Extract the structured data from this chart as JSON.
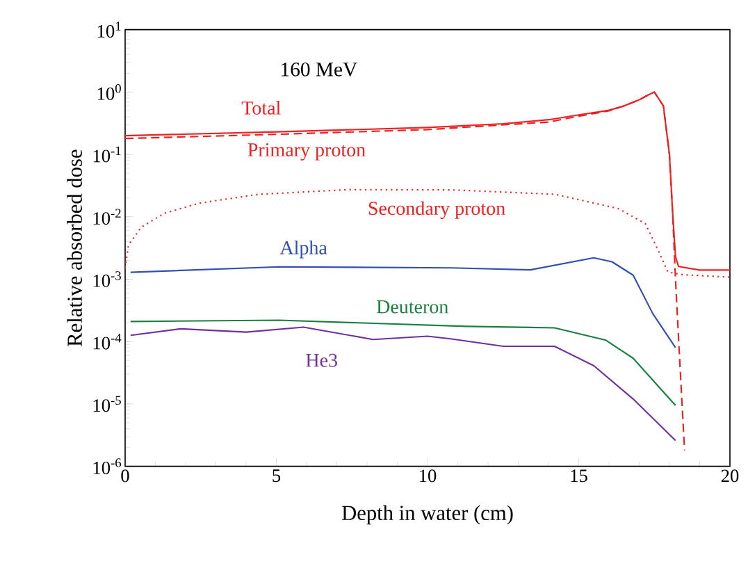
{
  "chart_data": {
    "type": "line",
    "title": "160 MeV",
    "xlabel": "Depth in water (cm)",
    "ylabel": "Relative absorbed dose",
    "log": "y",
    "xlim": [
      0,
      20
    ],
    "ylim": [
      1e-06,
      10
    ],
    "xticks": [
      0,
      5,
      10,
      15,
      20
    ],
    "yticks": [
      {
        "value": 1e-06,
        "label": "10$^{-6}$"
      },
      {
        "value": 1e-05,
        "label": "10$^{-5}$"
      },
      {
        "value": 0.0001,
        "label": "10$^{-4}$"
      },
      {
        "value": 0.001,
        "label": "10$^{-3}$"
      },
      {
        "value": 0.01,
        "label": "10$^{-2}$"
      },
      {
        "value": 0.1,
        "label": "10$^{-1}$"
      },
      {
        "value": 1,
        "label": "10$^{0}$"
      },
      {
        "value": 10,
        "label": "10$^{1}$"
      }
    ],
    "series": [
      {
        "name": "Total",
        "color": "#f02020",
        "line_style": "solid",
        "x": [
          0,
          5,
          10,
          12.5,
          14,
          15,
          16,
          16.5,
          17,
          17.3,
          17.5,
          17.8,
          18.0,
          18.1,
          18.2,
          18.3,
          19,
          20
        ],
        "values": [
          0.2,
          0.23,
          0.27,
          0.31,
          0.36,
          0.43,
          0.51,
          0.6,
          0.75,
          0.9,
          1.0,
          0.6,
          0.1,
          0.013,
          0.0023,
          0.0016,
          0.0014,
          0.0014
        ]
      },
      {
        "name": "Primary proton",
        "color": "#f02020",
        "line_style": "dashed",
        "x": [
          0,
          5,
          10,
          14,
          15,
          16,
          16.5,
          17,
          17.3,
          17.5,
          17.8,
          18.0,
          18.1,
          18.2,
          18.35,
          18.5
        ],
        "values": [
          0.18,
          0.21,
          0.25,
          0.33,
          0.41,
          0.5,
          0.6,
          0.75,
          0.9,
          1.0,
          0.6,
          0.1,
          0.013,
          0.001,
          4e-05,
          1.8e-06
        ]
      },
      {
        "name": "Secondary proton",
        "color": "#f02020",
        "line_style": "dotted",
        "x": [
          0,
          0.11,
          0.53,
          1.3,
          2.46,
          4.4,
          7.4,
          10.8,
          14.2,
          16.3,
          17.2,
          17.6,
          17.95,
          18.45,
          20
        ],
        "values": [
          0.0015,
          0.0035,
          0.0068,
          0.0114,
          0.0166,
          0.0229,
          0.0273,
          0.027,
          0.023,
          0.0136,
          0.0078,
          0.0031,
          0.0013,
          0.00118,
          0.00108
        ]
      },
      {
        "name": "Alpha",
        "color": "#3050b0",
        "line_style": "solid",
        "x": [
          0.18,
          5.1,
          10.8,
          13.4,
          15.5,
          16.1,
          16.8,
          17.45,
          18.2
        ],
        "values": [
          0.00129,
          0.00158,
          0.00152,
          0.00141,
          0.0022,
          0.0019,
          0.00116,
          0.00028,
          8e-05
        ]
      },
      {
        "name": "Deuteron",
        "color": "#1a8040",
        "line_style": "solid",
        "x": [
          0.18,
          5.1,
          11.3,
          14.2,
          15.9,
          16.8,
          18.2
        ],
        "values": [
          0.00021,
          0.00022,
          0.000175,
          0.000166,
          0.000105,
          5.4e-05,
          9.5e-06
        ]
      },
      {
        "name": "He3",
        "color": "#7030a0",
        "line_style": "solid",
        "x": [
          0.18,
          1.84,
          4.0,
          5.9,
          8.2,
          10.0,
          10.8,
          12.5,
          14.2,
          15.5,
          16.8,
          18.2
        ],
        "values": [
          0.000126,
          0.00016,
          0.000142,
          0.00017,
          0.000108,
          0.000122,
          0.00011,
          8.4e-05,
          8.4e-05,
          4.1e-05,
          1.2e-05,
          2.6e-06
        ]
      }
    ]
  }
}
